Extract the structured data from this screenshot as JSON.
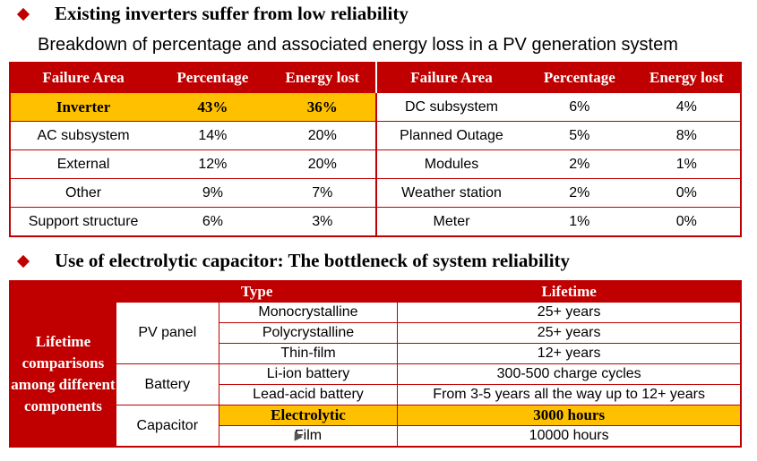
{
  "heading1": "Existing inverters suffer from low reliability",
  "subtitle": "Breakdown of percentage and associated energy loss in a PV generation system",
  "table1": {
    "headers": [
      "Failure Area",
      "Percentage",
      "Energy lost",
      "Failure Area",
      "Percentage",
      "Energy lost"
    ],
    "rows": [
      [
        "Inverter",
        "43%",
        "36%",
        "DC subsystem",
        "6%",
        "4%"
      ],
      [
        "AC subsystem",
        "14%",
        "20%",
        "Planned Outage",
        "5%",
        "8%"
      ],
      [
        "External",
        "12%",
        "20%",
        "Modules",
        "2%",
        "1%"
      ],
      [
        "Other",
        "9%",
        "7%",
        "Weather station",
        "2%",
        "0%"
      ],
      [
        "Support structure",
        "6%",
        "3%",
        "Meter",
        "1%",
        "0%"
      ]
    ]
  },
  "heading2": "Use of electrolytic capacitor: The bottleneck of system reliability",
  "table2": {
    "col_type": "Type",
    "col_lifetime": "Lifetime",
    "side_label": "Lifetime comparisons among different components",
    "groups": [
      {
        "name": "PV panel",
        "items": [
          {
            "type": "Monocrystalline",
            "lifetime": "25+ years"
          },
          {
            "type": "Polycrystalline",
            "lifetime": "25+ years"
          },
          {
            "type": "Thin-film",
            "lifetime": "12+ years"
          }
        ]
      },
      {
        "name": "Battery",
        "items": [
          {
            "type": "Li-ion battery",
            "lifetime": "300-500 charge cycles"
          },
          {
            "type": "Lead-acid battery",
            "lifetime": "From 3-5 years all the way up to 12+ years"
          }
        ]
      },
      {
        "name": "Capacitor",
        "items": [
          {
            "type": "Electrolytic",
            "lifetime": "3000 hours"
          },
          {
            "type": "Film",
            "lifetime": "10000 hours"
          }
        ]
      }
    ]
  },
  "colors": {
    "accent": "#c00000",
    "highlight": "#ffc000"
  }
}
